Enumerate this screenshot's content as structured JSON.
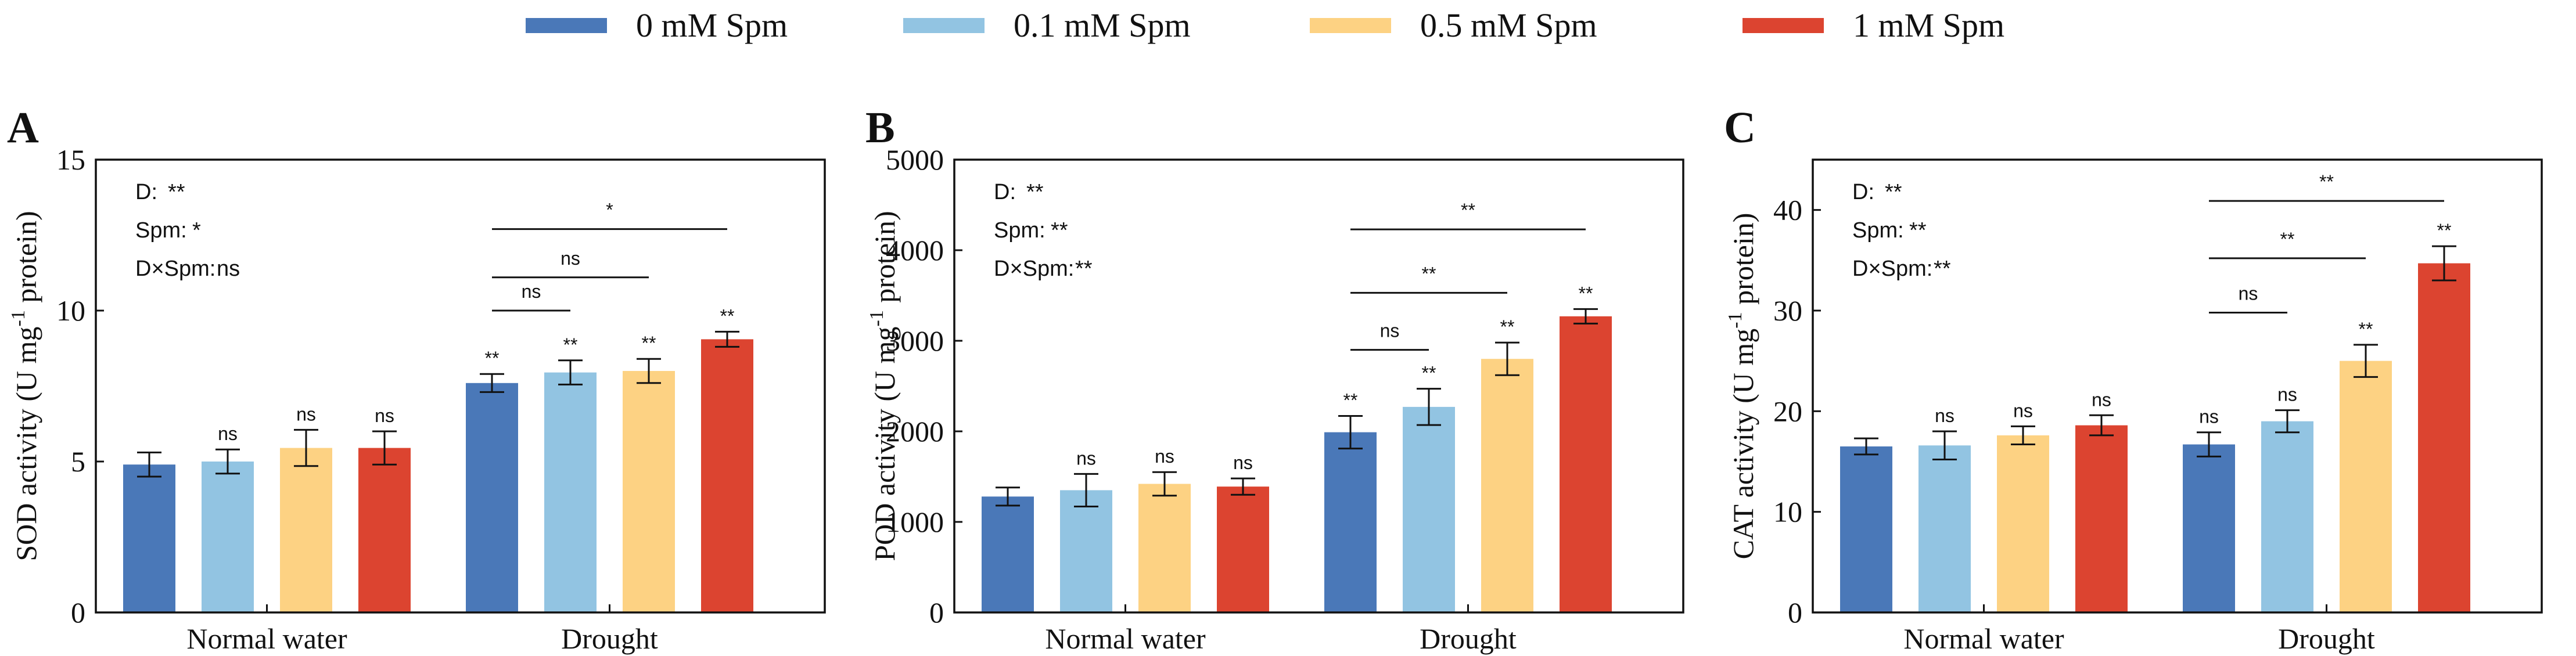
{
  "legend": {
    "items": [
      {
        "label": "0 mM Spm",
        "color": "#4a78b8"
      },
      {
        "label": "0.1 mM Spm",
        "color": "#92c4e2"
      },
      {
        "label": "0.5 mM Spm",
        "color": "#fdd283"
      },
      {
        "label": "1 mM Spm",
        "color": "#dc4430"
      }
    ]
  },
  "chart_data": [
    {
      "type": "bar",
      "panel_label": "A",
      "ylabel_prefix": "SOD activity (U mg",
      "ylabel_sup": "-1",
      "ylabel_suffix": " protein)",
      "ylim": [
        0,
        15
      ],
      "yticks": [
        0,
        5,
        10,
        15
      ],
      "categories": [
        "Normal water",
        "Drought"
      ],
      "series": [
        {
          "name": "0 mM Spm",
          "values": [
            4.9,
            7.6
          ],
          "errors": [
            0.4,
            0.3
          ],
          "sig": [
            "",
            "**"
          ]
        },
        {
          "name": "0.1 mM Spm",
          "values": [
            5.0,
            7.95
          ],
          "errors": [
            0.4,
            0.4
          ],
          "sig": [
            "ns",
            "**"
          ]
        },
        {
          "name": "0.5 mM Spm",
          "values": [
            5.45,
            8.0
          ],
          "errors": [
            0.6,
            0.4
          ],
          "sig": [
            "ns",
            "**"
          ]
        },
        {
          "name": "1 mM Spm",
          "values": [
            5.45,
            9.05
          ],
          "errors": [
            0.55,
            0.25
          ],
          "sig": [
            "ns",
            "**"
          ]
        }
      ],
      "stats": [
        {
          "label": "D:",
          "value": "**"
        },
        {
          "label": "Spm:",
          "value": "*"
        },
        {
          "label": "D×Spm:",
          "value": "ns"
        }
      ],
      "comparisons": [
        {
          "to_series": 1,
          "label": "ns",
          "y": 10.0
        },
        {
          "to_series": 2,
          "label": "ns",
          "y": 11.1
        },
        {
          "to_series": 3,
          "label": "*",
          "y": 12.7
        }
      ]
    },
    {
      "type": "bar",
      "panel_label": "B",
      "ylabel_prefix": "POD activity (U mg",
      "ylabel_sup": "-1",
      "ylabel_suffix": " protein)",
      "ylim": [
        0,
        5000
      ],
      "yticks": [
        0,
        1000,
        2000,
        3000,
        4000,
        5000
      ],
      "categories": [
        "Normal water",
        "Drought"
      ],
      "series": [
        {
          "name": "0 mM Spm",
          "values": [
            1280,
            1990
          ],
          "errors": [
            100,
            180
          ],
          "sig": [
            "",
            "**"
          ]
        },
        {
          "name": "0.1 mM Spm",
          "values": [
            1350,
            2270
          ],
          "errors": [
            180,
            200
          ],
          "sig": [
            "ns",
            "**"
          ]
        },
        {
          "name": "0.5 mM Spm",
          "values": [
            1420,
            2800
          ],
          "errors": [
            130,
            180
          ],
          "sig": [
            "ns",
            "**"
          ]
        },
        {
          "name": "1 mM Spm",
          "values": [
            1390,
            3270
          ],
          "errors": [
            90,
            80
          ],
          "sig": [
            "ns",
            "**"
          ]
        }
      ],
      "stats": [
        {
          "label": "D:",
          "value": "**"
        },
        {
          "label": "Spm:",
          "value": "**"
        },
        {
          "label": "D×Spm:",
          "value": "**"
        }
      ],
      "comparisons": [
        {
          "to_series": 1,
          "label": "ns",
          "y": 2900
        },
        {
          "to_series": 2,
          "label": "**",
          "y": 3530
        },
        {
          "to_series": 3,
          "label": "**",
          "y": 4230
        }
      ]
    },
    {
      "type": "bar",
      "panel_label": "C",
      "ylabel_prefix": "CAT activity (U mg",
      "ylabel_sup": "-1",
      "ylabel_suffix": " protein)",
      "ylim": [
        0,
        45
      ],
      "yticks": [
        0,
        10,
        20,
        30,
        40
      ],
      "categories": [
        "Normal water",
        "Drought"
      ],
      "series": [
        {
          "name": "0 mM Spm",
          "values": [
            16.5,
            16.7
          ],
          "errors": [
            0.8,
            1.2
          ],
          "sig": [
            "",
            "ns"
          ]
        },
        {
          "name": "0.1 mM Spm",
          "values": [
            16.6,
            19.0
          ],
          "errors": [
            1.4,
            1.1
          ],
          "sig": [
            "ns",
            "ns"
          ]
        },
        {
          "name": "0.5 mM Spm",
          "values": [
            17.6,
            25.0
          ],
          "errors": [
            0.9,
            1.6
          ],
          "sig": [
            "ns",
            "**"
          ]
        },
        {
          "name": "1 mM Spm",
          "values": [
            18.6,
            34.7
          ],
          "errors": [
            1.0,
            1.7
          ],
          "sig": [
            "ns",
            "**"
          ]
        }
      ],
      "stats": [
        {
          "label": "D:",
          "value": "**"
        },
        {
          "label": "Spm:",
          "value": "**"
        },
        {
          "label": "D×Spm:",
          "value": "**"
        }
      ],
      "comparisons": [
        {
          "to_series": 1,
          "label": "ns",
          "y": 29.8
        },
        {
          "to_series": 2,
          "label": "**",
          "y": 35.2
        },
        {
          "to_series": 3,
          "label": "**",
          "y": 40.9
        }
      ]
    }
  ]
}
